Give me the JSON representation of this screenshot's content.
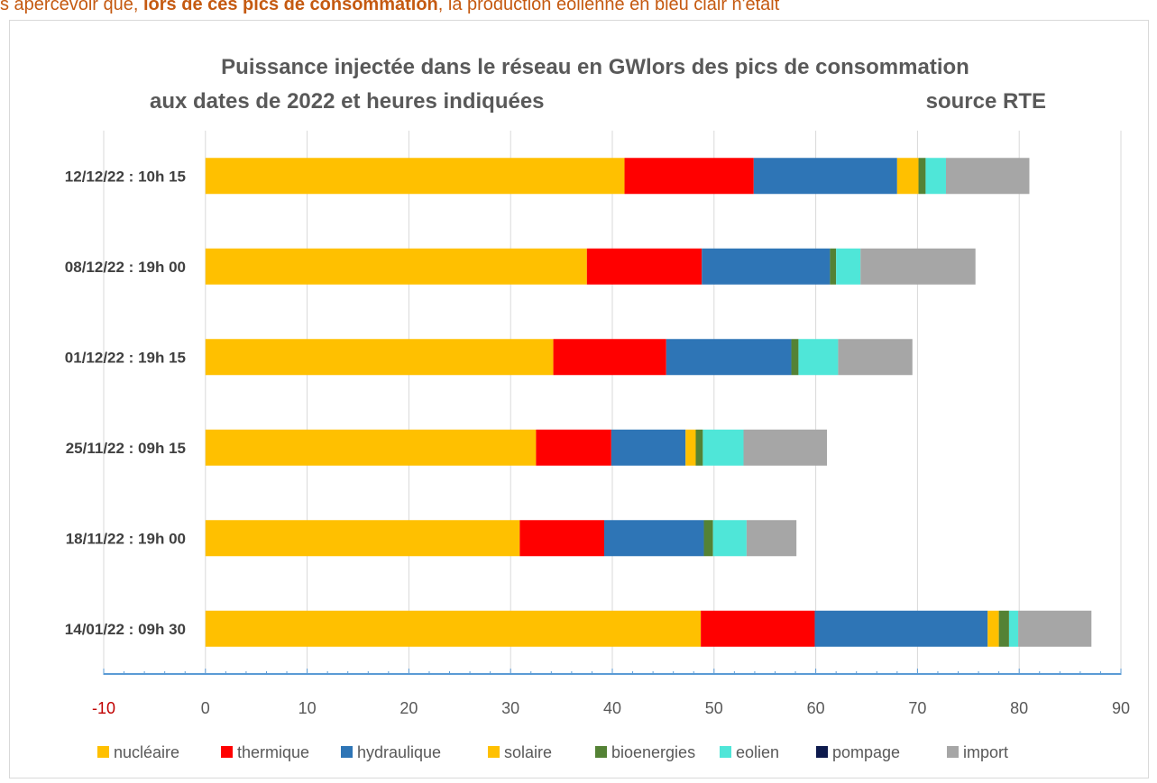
{
  "top_text": {
    "part1": "s apercevoir que, ",
    "bold": "lors de ces pics de consommation",
    "part2": ", la production éolienne en bleu clair n'était"
  },
  "chart_data": {
    "type": "bar",
    "orientation": "horizontal",
    "stacked": true,
    "title_line1": "Puissance injectée  dans le réseau en GWlors des pics de consommation",
    "title_line2": "aux dates de 2022  et heures indiquées",
    "source": "source RTE",
    "categories": [
      "12/12/22 : 10h 15",
      "08/12/22 : 19h 00",
      "01/12/22 : 19h 15",
      "25/11/22 : 09h 15",
      "18/11/22 : 19h 00",
      "14/01/22 : 09h 30"
    ],
    "xlim": [
      -10,
      90
    ],
    "xticks": [
      "-10",
      "0",
      "10",
      "20",
      "30",
      "40",
      "50",
      "60",
      "70",
      "80",
      "90"
    ],
    "grid": true,
    "legend_position": "bottom",
    "series": [
      {
        "name": "nucléaire",
        "color": "#ffc000",
        "values": [
          41.2,
          37.5,
          34.2,
          32.5,
          30.9,
          48.7
        ]
      },
      {
        "name": "thermique",
        "color": "#ff0000",
        "values": [
          12.7,
          11.3,
          11.1,
          7.4,
          8.3,
          11.2
        ]
      },
      {
        "name": "hydraulique",
        "color": "#2e75b6",
        "values": [
          14.1,
          12.6,
          12.3,
          7.3,
          9.8,
          17.0
        ]
      },
      {
        "name": "solaire",
        "color": "#ffc000",
        "values": [
          2.1,
          0.0,
          0.0,
          1.0,
          0.0,
          1.1
        ]
      },
      {
        "name": "bioenergies",
        "color": "#548235",
        "values": [
          0.7,
          0.6,
          0.7,
          0.7,
          0.9,
          1.0
        ]
      },
      {
        "name": "eolien",
        "color": "#4fe6d8",
        "values": [
          2.0,
          2.4,
          3.9,
          4.0,
          3.3,
          0.9
        ]
      },
      {
        "name": "pompage",
        "color": "#0d1a4d",
        "values": [
          0,
          0,
          0,
          0,
          0,
          0
        ]
      },
      {
        "name": "import",
        "color": "#a6a6a6",
        "values": [
          8.2,
          11.3,
          7.3,
          8.2,
          4.9,
          7.2
        ]
      }
    ]
  }
}
